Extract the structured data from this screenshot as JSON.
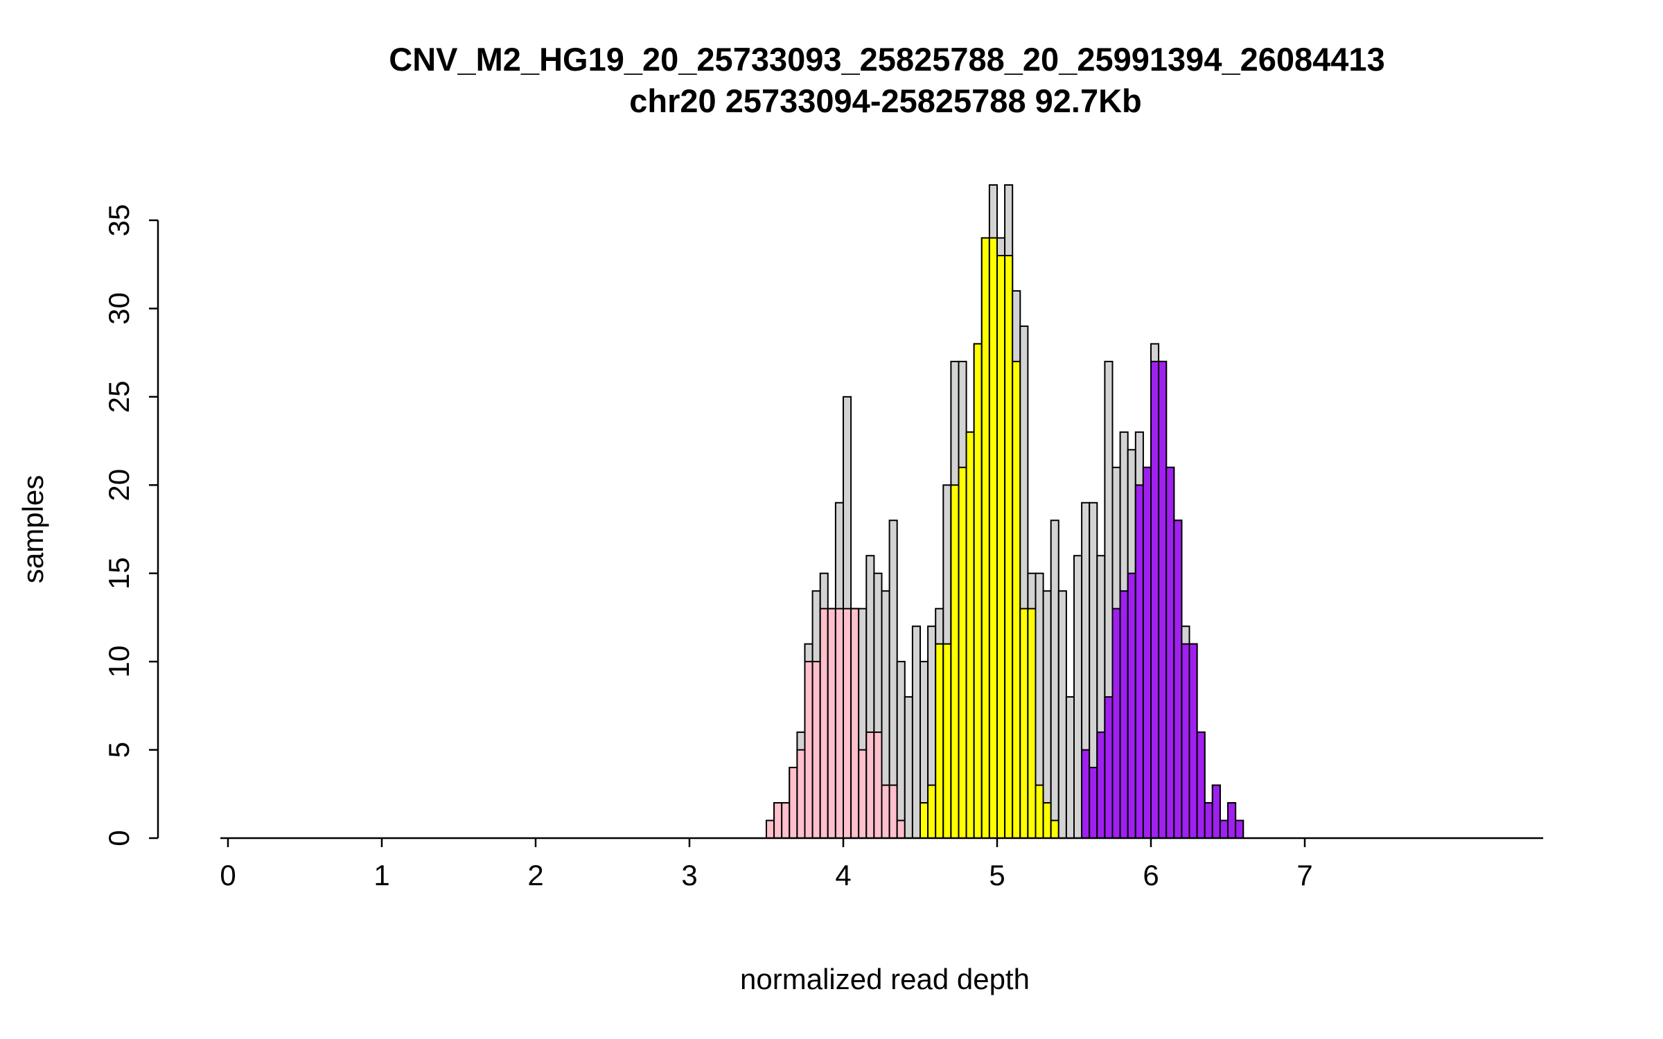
{
  "chart_data": {
    "type": "bar",
    "subtype": "overlaid-histogram",
    "title": "CNV_M2_HG19_20_25733093_25825788_20_25991394_26084413",
    "subtitle": "chr20 25733094-25825788 92.7Kb",
    "xlabel": "normalized read depth",
    "ylabel": "samples",
    "xticks": [
      0,
      1,
      2,
      3,
      4,
      5,
      6,
      7
    ],
    "yticks": [
      0,
      5,
      10,
      15,
      20,
      25,
      30,
      35
    ],
    "xlim": [
      0,
      8.55
    ],
    "ylim": [
      0,
      37.5
    ],
    "bin_width": 0.05,
    "grid": false,
    "legend": "none",
    "colors": {
      "gray": "#D3D3D3",
      "pink": "#FFC0CB",
      "yellow": "#FFFF00",
      "purple": "#A020F0",
      "stroke": "#000000"
    },
    "bins_note": "x = left edge of bin; t = total samples (gray outline bar); c/v = overlay cluster color and its count",
    "bins": [
      {
        "x": 3.5,
        "t": 1,
        "c": "pink",
        "v": 1
      },
      {
        "x": 3.55,
        "t": 2,
        "c": "pink",
        "v": 2
      },
      {
        "x": 3.6,
        "t": 2,
        "c": "pink",
        "v": 2
      },
      {
        "x": 3.65,
        "t": 4,
        "c": "pink",
        "v": 4
      },
      {
        "x": 3.7,
        "t": 6,
        "c": "pink",
        "v": 5
      },
      {
        "x": 3.75,
        "t": 11,
        "c": "pink",
        "v": 10
      },
      {
        "x": 3.8,
        "t": 14,
        "c": "pink",
        "v": 10
      },
      {
        "x": 3.85,
        "t": 15,
        "c": "pink",
        "v": 13
      },
      {
        "x": 3.9,
        "t": 13,
        "c": "pink",
        "v": 13
      },
      {
        "x": 3.95,
        "t": 19,
        "c": "pink",
        "v": 13
      },
      {
        "x": 4.0,
        "t": 25,
        "c": "pink",
        "v": 13
      },
      {
        "x": 4.05,
        "t": 13,
        "c": "pink",
        "v": 13
      },
      {
        "x": 4.1,
        "t": 13,
        "c": "pink",
        "v": 5
      },
      {
        "x": 4.15,
        "t": 16,
        "c": "pink",
        "v": 6
      },
      {
        "x": 4.2,
        "t": 15,
        "c": "pink",
        "v": 6
      },
      {
        "x": 4.25,
        "t": 14,
        "c": "pink",
        "v": 3
      },
      {
        "x": 4.3,
        "t": 18,
        "c": "pink",
        "v": 3
      },
      {
        "x": 4.35,
        "t": 10,
        "c": "pink",
        "v": 1
      },
      {
        "x": 4.4,
        "t": 8,
        "c": null,
        "v": 0
      },
      {
        "x": 4.45,
        "t": 12,
        "c": null,
        "v": 0
      },
      {
        "x": 4.5,
        "t": 10,
        "c": "yellow",
        "v": 2
      },
      {
        "x": 4.55,
        "t": 12,
        "c": "yellow",
        "v": 3
      },
      {
        "x": 4.6,
        "t": 13,
        "c": "yellow",
        "v": 11
      },
      {
        "x": 4.65,
        "t": 20,
        "c": "yellow",
        "v": 11
      },
      {
        "x": 4.7,
        "t": 27,
        "c": "yellow",
        "v": 20
      },
      {
        "x": 4.75,
        "t": 27,
        "c": "yellow",
        "v": 21
      },
      {
        "x": 4.8,
        "t": 23,
        "c": "yellow",
        "v": 23
      },
      {
        "x": 4.85,
        "t": 28,
        "c": "yellow",
        "v": 28
      },
      {
        "x": 4.9,
        "t": 34,
        "c": "yellow",
        "v": 34
      },
      {
        "x": 4.95,
        "t": 37,
        "c": "yellow",
        "v": 34
      },
      {
        "x": 5.0,
        "t": 34,
        "c": "yellow",
        "v": 33
      },
      {
        "x": 5.05,
        "t": 37,
        "c": "yellow",
        "v": 33
      },
      {
        "x": 5.1,
        "t": 31,
        "c": "yellow",
        "v": 27
      },
      {
        "x": 5.15,
        "t": 29,
        "c": "yellow",
        "v": 13
      },
      {
        "x": 5.2,
        "t": 15,
        "c": "yellow",
        "v": 13
      },
      {
        "x": 5.25,
        "t": 15,
        "c": "yellow",
        "v": 3
      },
      {
        "x": 5.3,
        "t": 14,
        "c": "yellow",
        "v": 2
      },
      {
        "x": 5.35,
        "t": 18,
        "c": "yellow",
        "v": 1
      },
      {
        "x": 5.4,
        "t": 14,
        "c": null,
        "v": 0
      },
      {
        "x": 5.45,
        "t": 8,
        "c": null,
        "v": 0
      },
      {
        "x": 5.5,
        "t": 16,
        "c": null,
        "v": 0
      },
      {
        "x": 5.55,
        "t": 19,
        "c": "purple",
        "v": 5
      },
      {
        "x": 5.6,
        "t": 19,
        "c": "purple",
        "v": 4
      },
      {
        "x": 5.65,
        "t": 16,
        "c": "purple",
        "v": 6
      },
      {
        "x": 5.7,
        "t": 27,
        "c": "purple",
        "v": 8
      },
      {
        "x": 5.75,
        "t": 21,
        "c": "purple",
        "v": 13
      },
      {
        "x": 5.8,
        "t": 23,
        "c": "purple",
        "v": 14
      },
      {
        "x": 5.85,
        "t": 22,
        "c": "purple",
        "v": 15
      },
      {
        "x": 5.9,
        "t": 23,
        "c": "purple",
        "v": 20
      },
      {
        "x": 5.95,
        "t": 21,
        "c": "purple",
        "v": 21
      },
      {
        "x": 6.0,
        "t": 28,
        "c": "purple",
        "v": 27
      },
      {
        "x": 6.05,
        "t": 27,
        "c": "purple",
        "v": 27
      },
      {
        "x": 6.1,
        "t": 21,
        "c": "purple",
        "v": 21
      },
      {
        "x": 6.15,
        "t": 18,
        "c": "purple",
        "v": 18
      },
      {
        "x": 6.2,
        "t": 12,
        "c": "purple",
        "v": 11
      },
      {
        "x": 6.25,
        "t": 11,
        "c": "purple",
        "v": 11
      },
      {
        "x": 6.3,
        "t": 6,
        "c": "purple",
        "v": 6
      },
      {
        "x": 6.35,
        "t": 2,
        "c": "purple",
        "v": 2
      },
      {
        "x": 6.4,
        "t": 3,
        "c": "purple",
        "v": 3
      },
      {
        "x": 6.45,
        "t": 1,
        "c": "purple",
        "v": 1
      },
      {
        "x": 6.5,
        "t": 2,
        "c": "purple",
        "v": 2
      },
      {
        "x": 6.55,
        "t": 1,
        "c": "purple",
        "v": 1
      }
    ]
  }
}
